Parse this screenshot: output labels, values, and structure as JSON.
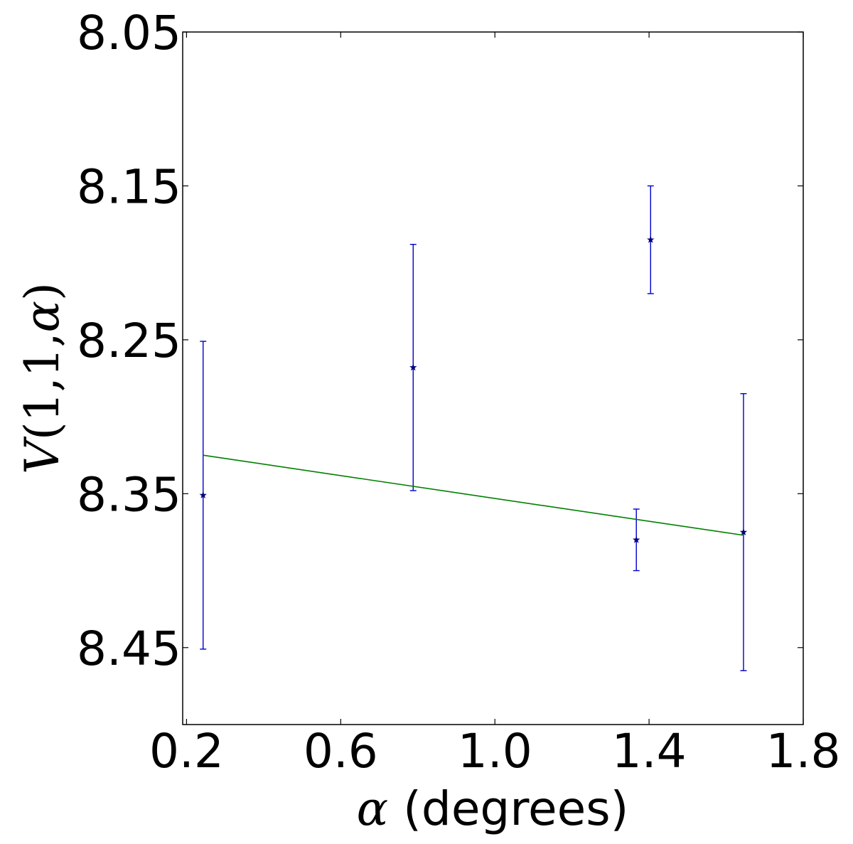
{
  "chart_data": {
    "type": "scatter",
    "title": "",
    "xlabel": {
      "symbol": "α",
      "text": " (degrees)"
    },
    "ylabel": {
      "V": "V",
      "args": "(1,1,",
      "alpha": "α",
      "close": ")"
    },
    "xlim": [
      0.19,
      1.8
    ],
    "ylim": [
      8.5,
      8.05
    ],
    "y_inverted": true,
    "grid": false,
    "x_ticks": [
      0.2,
      0.6,
      1.0,
      1.4,
      1.8
    ],
    "x_tick_labels": [
      "0.2",
      "0.6",
      "1.0",
      "1.4",
      "1.8"
    ],
    "y_ticks": [
      8.05,
      8.15,
      8.25,
      8.35,
      8.45
    ],
    "y_tick_labels": [
      "8.05",
      "8.15",
      "8.25",
      "8.35",
      "8.45"
    ],
    "series": [
      {
        "kind": "errorbar",
        "marker": "star",
        "color": "#0000cc",
        "marker_color": "#000080",
        "points": [
          {
            "x": 0.243,
            "y": 8.351,
            "yerr": 0.1
          },
          {
            "x": 0.788,
            "y": 8.268,
            "yerr": 0.08
          },
          {
            "x": 1.367,
            "y": 8.38,
            "yerr": 0.02
          },
          {
            "x": 1.404,
            "y": 8.185,
            "yerr": 0.035
          },
          {
            "x": 1.645,
            "y": 8.375,
            "yerr": 0.09
          }
        ]
      },
      {
        "kind": "line",
        "color": "#008000",
        "x": [
          0.243,
          1.645
        ],
        "y": [
          8.325,
          8.377
        ]
      }
    ]
  }
}
